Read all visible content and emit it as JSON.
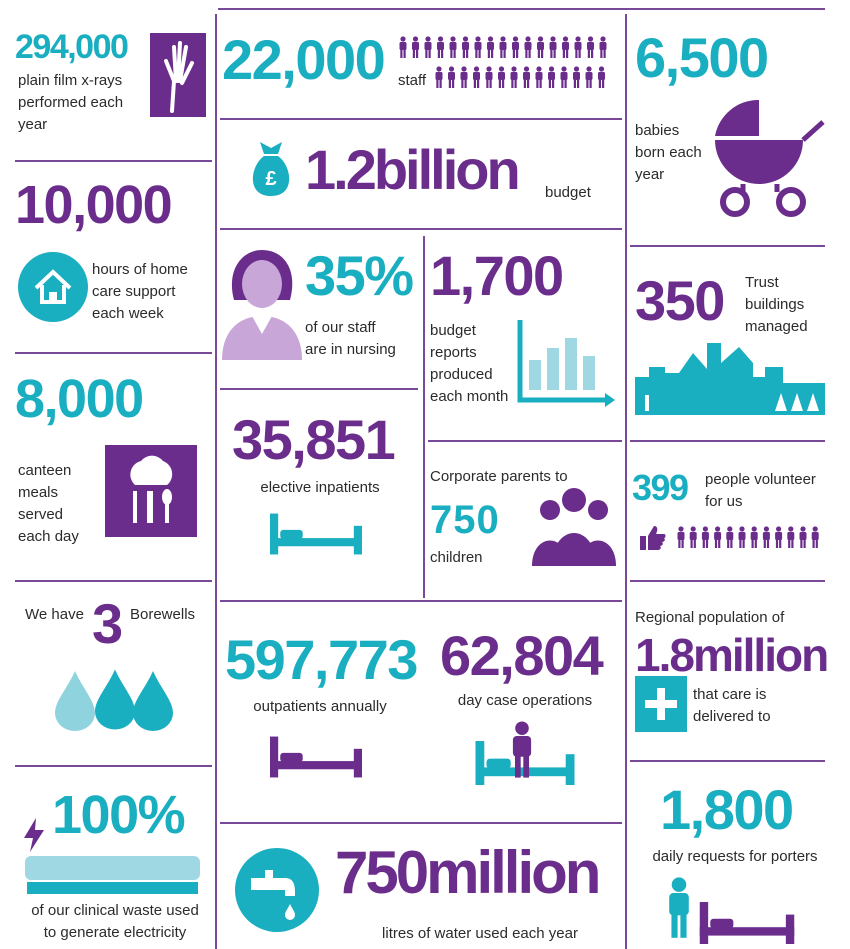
{
  "left": {
    "xrays": {
      "number": "294,000",
      "lines": [
        "plain film x-rays",
        "performed each",
        "year"
      ]
    },
    "homecare": {
      "number": "10,000",
      "lines": [
        "hours of home",
        "care support",
        "each week"
      ]
    },
    "canteen": {
      "number": "8,000",
      "lines": [
        "canteen",
        "meals",
        "served",
        "each day"
      ]
    },
    "borewells": {
      "before": "We have",
      "number": "3",
      "after": "Borewells"
    },
    "waste": {
      "number": "100%",
      "lines": [
        "of our clinical waste used",
        "to generate electricity"
      ]
    }
  },
  "middle": {
    "staff": {
      "number": "22,000",
      "label": "staff"
    },
    "budget": {
      "number": "1.2billion",
      "label": "budget"
    },
    "nursing": {
      "number": "35%",
      "lines": [
        "of our staff",
        "are in nursing"
      ]
    },
    "reports": {
      "number": "1,700",
      "lines": [
        "budget",
        "reports",
        "produced",
        "each month"
      ]
    },
    "inpatients": {
      "number": "35,851",
      "label": "elective inpatients"
    },
    "parents": {
      "before": "Corporate parents to",
      "number": "750",
      "after": "children"
    },
    "outpatients": {
      "number": "597,773",
      "label": "outpatients annually"
    },
    "daycase": {
      "number": "62,804",
      "label": "day case operations"
    },
    "water": {
      "number": "750million",
      "label": "litres of water used each year"
    }
  },
  "right": {
    "babies": {
      "number": "6,500",
      "lines": [
        "babies",
        "born each",
        "year"
      ]
    },
    "buildings": {
      "number": "350",
      "lines": [
        "Trust",
        "buildings",
        "managed"
      ]
    },
    "volunteers": {
      "number": "399",
      "lines": [
        "people volunteer",
        "for us"
      ]
    },
    "population": {
      "before": "Regional population of",
      "number": "1.8million",
      "lines": [
        "that care is",
        "delivered to"
      ]
    },
    "porters": {
      "number": "1,800",
      "label": "daily requests for porters"
    }
  }
}
